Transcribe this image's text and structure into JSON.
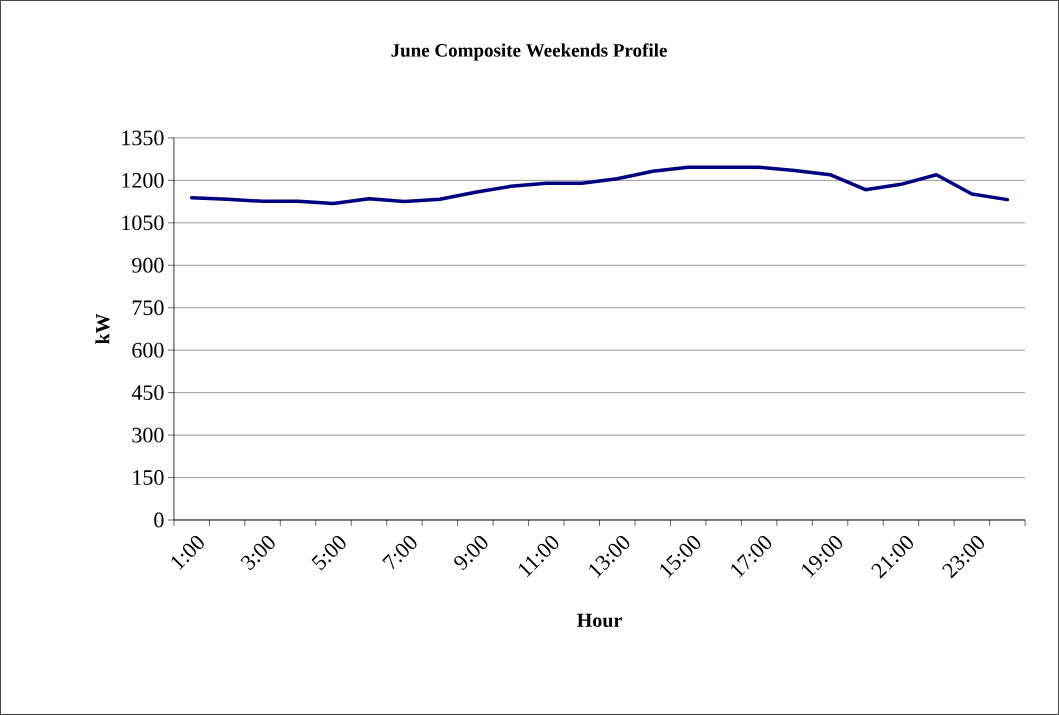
{
  "chart_data": {
    "type": "line",
    "title": "June Composite Weekends Profile",
    "xlabel": "Hour",
    "ylabel": "kW",
    "categories": [
      "1:00",
      null,
      "3:00",
      null,
      "5:00",
      null,
      "7:00",
      null,
      "9:00",
      null,
      "11:00",
      null,
      "13:00",
      null,
      "15:00",
      null,
      "17:00",
      null,
      "19:00",
      null,
      "21:00",
      null,
      "23:00",
      null
    ],
    "values": [
      1139,
      1133,
      1126,
      1126,
      1118,
      1135,
      1125,
      1133,
      1158,
      1179,
      1190,
      1190,
      1206,
      1232,
      1246,
      1246,
      1246,
      1235,
      1220,
      1167,
      1186,
      1220,
      1152,
      1132
    ],
    "color": "#000080",
    "ylim": [
      0,
      1350
    ],
    "yticks": [
      0,
      150,
      300,
      450,
      600,
      750,
      900,
      1050,
      1200,
      1350
    ],
    "grid": "y",
    "marker": "none",
    "line_style": "solid"
  }
}
